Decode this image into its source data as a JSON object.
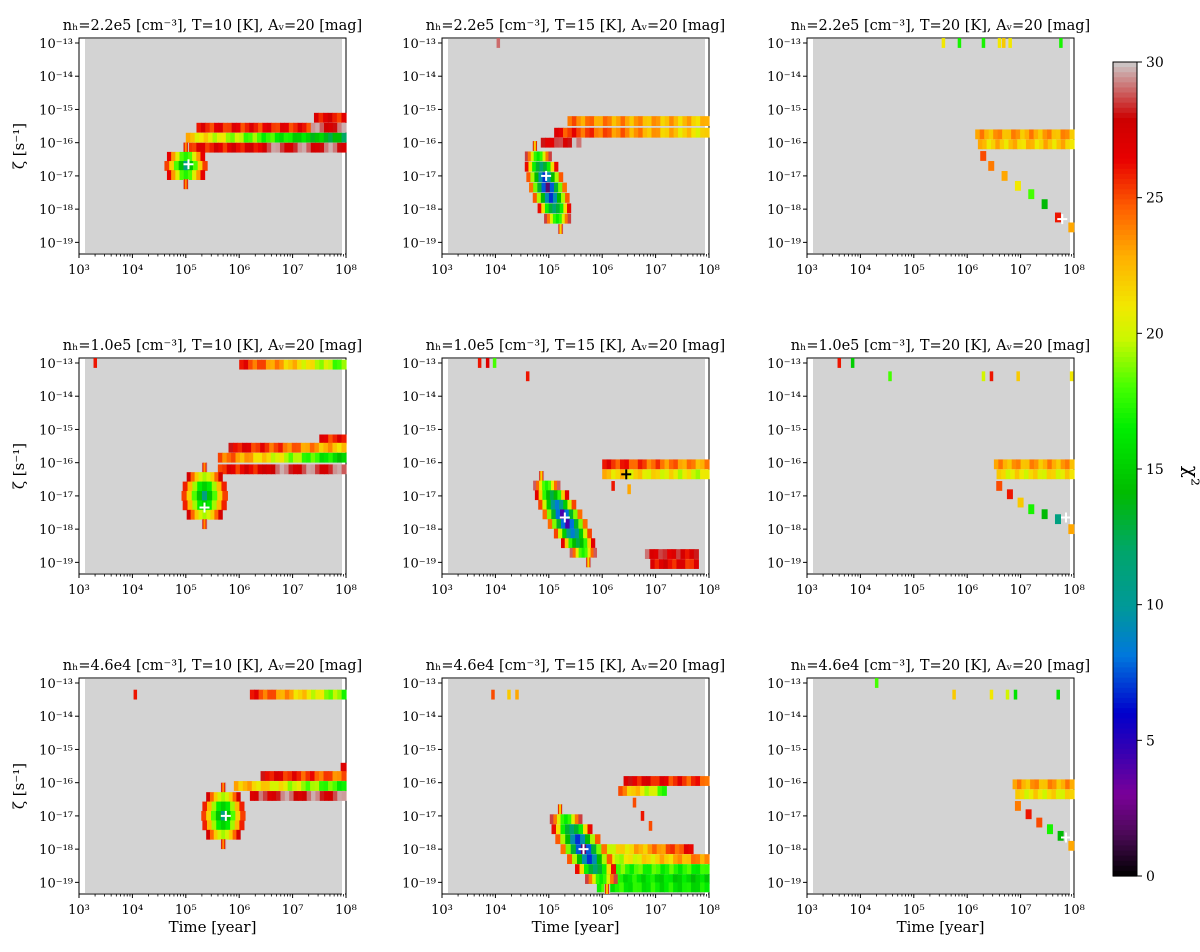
{
  "figure": {
    "x_label": "Time [year]",
    "y_label": "ζ [s⁻¹]",
    "colorbar_label": "χ²"
  },
  "colorbar": {
    "vmin": 0,
    "vmax": 30,
    "ticks": [
      0,
      5,
      10,
      15,
      20,
      25,
      30
    ],
    "colormap": "nipy_spectral-like",
    "stops": [
      [
        0,
        "#000000"
      ],
      [
        0.05,
        "#4a0a55"
      ],
      [
        0.1,
        "#7a0099"
      ],
      [
        0.15,
        "#3a00b0"
      ],
      [
        0.2,
        "#0000cc"
      ],
      [
        0.27,
        "#0077dd"
      ],
      [
        0.33,
        "#009999"
      ],
      [
        0.4,
        "#00a66a"
      ],
      [
        0.47,
        "#00bb00"
      ],
      [
        0.55,
        "#00ee00"
      ],
      [
        0.6,
        "#44ff00"
      ],
      [
        0.66,
        "#ccf700"
      ],
      [
        0.7,
        "#f2e800"
      ],
      [
        0.76,
        "#ffb000"
      ],
      [
        0.82,
        "#ff6000"
      ],
      [
        0.88,
        "#e80000"
      ],
      [
        0.93,
        "#cc0000"
      ],
      [
        1.0,
        "#cccccc"
      ]
    ],
    "background": "#d3d3d3"
  },
  "chart_data": [
    {
      "type": "heatmap",
      "title_n": "2.2e5",
      "title_T": "10",
      "xlabel": "",
      "ylabel": "ζ [s⁻¹]",
      "xlim_log10": [
        3,
        8
      ],
      "ylim_log10": [
        -19.2,
        -13
      ],
      "best_fit": {
        "log_t": 5.05,
        "log_zeta": -16.65,
        "marker_color": "#ffffff"
      },
      "bands": [
        {
          "log_zeta": -15.55,
          "t0": 5.2,
          "t1": 8.0,
          "c0": 26,
          "c1": 26,
          "fade": 7.3
        },
        {
          "log_zeta": -15.85,
          "t0": 5.0,
          "t1": 8.0,
          "c0": 22,
          "c1": 13
        },
        {
          "log_zeta": -16.15,
          "t0": 4.95,
          "t1": 8.0,
          "c0": 26,
          "c1": 28,
          "fade": 6.4
        },
        {
          "log_zeta": -15.25,
          "t0": 7.4,
          "t1": 8.0,
          "c0": 27,
          "c1": 26
        }
      ],
      "blobs": [
        {
          "log_t": 5.0,
          "log_zeta": -16.7,
          "w": 0.35,
          "h": 1.1,
          "cmin": 11,
          "tilt": 0.0
        }
      ],
      "spikes": []
    },
    {
      "type": "heatmap",
      "title_n": "2.2e5",
      "title_T": "15",
      "xlabel": "",
      "ylabel": "",
      "xlim_log10": [
        3,
        8
      ],
      "ylim_log10": [
        -19.2,
        -13
      ],
      "best_fit": {
        "log_t": 4.95,
        "log_zeta": -17.0,
        "marker_color": "#ffffff"
      },
      "bands": [
        {
          "log_zeta": -15.35,
          "t0": 5.35,
          "t1": 8.0,
          "c0": 24,
          "c1": 22
        },
        {
          "log_zeta": -15.7,
          "t0": 5.1,
          "t1": 8.0,
          "c0": 26,
          "c1": 21
        },
        {
          "log_zeta": -16.0,
          "t0": 4.85,
          "t1": 5.6,
          "c0": 27,
          "c1": 29
        }
      ],
      "blobs": [
        {
          "log_t": 4.98,
          "log_zeta": -17.35,
          "w": 0.3,
          "h": 2.5,
          "cmin": 2,
          "tilt": -0.12
        }
      ],
      "spikes": [
        {
          "log_t": 4.05,
          "log_zeta": -13.0,
          "c": 29
        }
      ]
    },
    {
      "type": "heatmap",
      "title_n": "2.2e5",
      "title_T": "20",
      "xlabel": "",
      "ylabel": "",
      "xlim_log10": [
        3,
        8
      ],
      "ylim_log10": [
        -19.2,
        -13
      ],
      "best_fit": {
        "log_t": 7.78,
        "log_zeta": -18.3,
        "marker_color": "#ffffff"
      },
      "bands": [
        {
          "log_zeta": -15.75,
          "t0": 6.15,
          "t1": 8.0,
          "c0": 23,
          "c1": 23
        },
        {
          "log_zeta": -16.05,
          "t0": 6.2,
          "t1": 8.0,
          "c0": 22,
          "c1": 22
        }
      ],
      "blobs": [],
      "steps": [
        {
          "log_t": 6.3,
          "log_zeta": -16.4,
          "c": 25
        },
        {
          "log_t": 6.45,
          "log_zeta": -16.7,
          "c": 24
        },
        {
          "log_t": 6.7,
          "log_zeta": -17.0,
          "c": 23
        },
        {
          "log_t": 6.95,
          "log_zeta": -17.3,
          "c": 21
        },
        {
          "log_t": 7.2,
          "log_zeta": -17.55,
          "c": 18
        },
        {
          "log_t": 7.45,
          "log_zeta": -17.85,
          "c": 14
        },
        {
          "log_t": 7.7,
          "log_zeta": -18.25,
          "c": 26
        },
        {
          "log_t": 7.95,
          "log_zeta": -18.55,
          "c": 23
        }
      ],
      "spikes": [
        {
          "log_t": 5.55,
          "log_zeta": -13.0,
          "c": 21
        },
        {
          "log_t": 5.85,
          "log_zeta": -13.0,
          "c": 17
        },
        {
          "log_t": 6.3,
          "log_zeta": -13.0,
          "c": 17
        },
        {
          "log_t": 6.6,
          "log_zeta": -13.0,
          "c": 21
        },
        {
          "log_t": 6.68,
          "log_zeta": -13.0,
          "c": 22
        },
        {
          "log_t": 6.8,
          "log_zeta": -13.0,
          "c": 21
        },
        {
          "log_t": 7.75,
          "log_zeta": -13.0,
          "c": 17
        }
      ]
    },
    {
      "type": "heatmap",
      "title_n": "1.0e5",
      "title_T": "10",
      "xlabel": "",
      "ylabel": "ζ [s⁻¹]",
      "xlim_log10": [
        3,
        8
      ],
      "ylim_log10": [
        -19.2,
        -13
      ],
      "best_fit": {
        "log_t": 5.35,
        "log_zeta": -17.35,
        "marker_color": "#ffffff"
      },
      "bands": [
        {
          "log_zeta": -13.05,
          "t0": 6.0,
          "t1": 8.0,
          "c0": 26,
          "c1": 18
        },
        {
          "log_zeta": -15.3,
          "t0": 7.5,
          "t1": 8.0,
          "c0": 26,
          "c1": 26
        },
        {
          "log_zeta": -15.55,
          "t0": 5.8,
          "t1": 8.0,
          "c0": 27,
          "c1": 22
        },
        {
          "log_zeta": -15.85,
          "t0": 5.6,
          "t1": 8.0,
          "c0": 25,
          "c1": 15
        },
        {
          "log_zeta": -16.2,
          "t0": 5.6,
          "t1": 8.0,
          "c0": 26,
          "c1": 28,
          "fade": 6.5
        }
      ],
      "blobs": [
        {
          "log_t": 5.35,
          "log_zeta": -17.0,
          "w": 0.38,
          "h": 1.7,
          "cmin": 11,
          "tilt": 0.0
        }
      ],
      "spikes": [
        {
          "log_t": 3.3,
          "log_zeta": -13.0,
          "c": 26
        }
      ]
    },
    {
      "type": "heatmap",
      "title_n": "1.0e5",
      "title_T": "15",
      "xlabel": "",
      "ylabel": "",
      "xlim_log10": [
        3,
        8
      ],
      "ylim_log10": [
        -19.2,
        -13
      ],
      "best_fit": {
        "log_t": 5.3,
        "log_zeta": -17.65,
        "marker_color": "#ffffff"
      },
      "best_fit2": {
        "log_t": 6.45,
        "log_zeta": -16.35,
        "marker_color": "#000000"
      },
      "bands": [
        {
          "log_zeta": -16.05,
          "t0": 6.0,
          "t1": 8.0,
          "c0": 26,
          "c1": 23
        },
        {
          "log_zeta": -16.35,
          "t0": 6.0,
          "t1": 8.0,
          "c0": 22,
          "c1": 20
        },
        {
          "log_zeta": -18.75,
          "t0": 6.8,
          "t1": 7.8,
          "c0": 28,
          "c1": 27
        },
        {
          "log_zeta": -19.05,
          "t0": 6.9,
          "t1": 7.8,
          "c0": 27,
          "c1": 26
        }
      ],
      "blobs": [
        {
          "log_t": 5.3,
          "log_zeta": -17.7,
          "w": 0.32,
          "h": 2.6,
          "cmin": 2,
          "tilt": -0.22
        }
      ],
      "spikes": [
        {
          "log_t": 3.7,
          "log_zeta": -13.0,
          "c": 26
        },
        {
          "log_t": 3.85,
          "log_zeta": -13.0,
          "c": 27
        },
        {
          "log_t": 3.98,
          "log_zeta": -13.0,
          "c": 18
        },
        {
          "log_t": 4.6,
          "log_zeta": -13.4,
          "c": 26
        },
        {
          "log_t": 6.2,
          "log_zeta": -16.7,
          "c": 26
        },
        {
          "log_t": 6.5,
          "log_zeta": -16.8,
          "c": 23
        }
      ]
    },
    {
      "type": "heatmap",
      "title_n": "1.0e5",
      "title_T": "20",
      "xlabel": "",
      "ylabel": "",
      "xlim_log10": [
        3,
        8
      ],
      "ylim_log10": [
        -19.2,
        -13
      ],
      "best_fit": {
        "log_t": 7.85,
        "log_zeta": -17.65,
        "marker_color": "#ffffff"
      },
      "bands": [
        {
          "log_zeta": -16.05,
          "t0": 6.5,
          "t1": 8.0,
          "c0": 23,
          "c1": 23
        },
        {
          "log_zeta": -16.35,
          "t0": 6.55,
          "t1": 8.0,
          "c0": 21,
          "c1": 21
        }
      ],
      "blobs": [],
      "steps": [
        {
          "log_t": 6.6,
          "log_zeta": -16.7,
          "c": 25
        },
        {
          "log_t": 6.8,
          "log_zeta": -16.95,
          "c": 26
        },
        {
          "log_t": 7.0,
          "log_zeta": -17.2,
          "c": 22
        },
        {
          "log_t": 7.2,
          "log_zeta": -17.4,
          "c": 17
        },
        {
          "log_t": 7.45,
          "log_zeta": -17.55,
          "c": 14
        },
        {
          "log_t": 7.7,
          "log_zeta": -17.7,
          "c": 11
        },
        {
          "log_t": 7.95,
          "log_zeta": -18.0,
          "c": 23
        }
      ],
      "spikes": [
        {
          "log_t": 3.6,
          "log_zeta": -13.0,
          "c": 26
        },
        {
          "log_t": 3.85,
          "log_zeta": -13.0,
          "c": 15
        },
        {
          "log_t": 4.55,
          "log_zeta": -13.4,
          "c": 18
        },
        {
          "log_t": 6.3,
          "log_zeta": -13.4,
          "c": 20
        },
        {
          "log_t": 6.45,
          "log_zeta": -13.4,
          "c": 26
        },
        {
          "log_t": 6.95,
          "log_zeta": -13.4,
          "c": 22
        },
        {
          "log_t": 7.95,
          "log_zeta": -13.4,
          "c": 21
        }
      ]
    },
    {
      "type": "heatmap",
      "title_n": "4.6e4",
      "title_T": "10",
      "xlabel": "Time [year]",
      "ylabel": "ζ [s⁻¹]",
      "xlim_log10": [
        3,
        8
      ],
      "ylim_log10": [
        -19.2,
        -13
      ],
      "best_fit": {
        "log_t": 5.75,
        "log_zeta": -17.0,
        "marker_color": "#ffffff"
      },
      "bands": [
        {
          "log_zeta": -13.35,
          "t0": 6.2,
          "t1": 8.0,
          "c0": 26,
          "c1": 18
        },
        {
          "log_zeta": -15.55,
          "t0": 7.9,
          "t1": 8.0,
          "c0": 26,
          "c1": 26
        },
        {
          "log_zeta": -15.8,
          "t0": 6.4,
          "t1": 8.0,
          "c0": 27,
          "c1": 24
        },
        {
          "log_zeta": -16.1,
          "t0": 5.9,
          "t1": 8.0,
          "c0": 23,
          "c1": 17
        },
        {
          "log_zeta": -16.4,
          "t0": 6.2,
          "t1": 8.0,
          "c0": 28,
          "c1": 29,
          "fade": 6.6
        }
      ],
      "blobs": [
        {
          "log_t": 5.7,
          "log_zeta": -17.0,
          "w": 0.36,
          "h": 1.7,
          "cmin": 11,
          "tilt": 0.0
        }
      ],
      "spikes": [
        {
          "log_t": 4.05,
          "log_zeta": -13.35,
          "c": 26
        }
      ]
    },
    {
      "type": "heatmap",
      "title_n": "4.6e4",
      "title_T": "15",
      "xlabel": "Time [year]",
      "ylabel": "",
      "xlim_log10": [
        3,
        8
      ],
      "ylim_log10": [
        -19.2,
        -13
      ],
      "best_fit": {
        "log_t": 5.65,
        "log_zeta": -18.0,
        "marker_color": "#ffffff"
      },
      "bands": [
        {
          "log_zeta": -15.95,
          "t0": 6.4,
          "t1": 8.0,
          "c0": 27,
          "c1": 25
        },
        {
          "log_zeta": -16.25,
          "t0": 6.3,
          "t1": 7.2,
          "c0": 24,
          "c1": 18
        },
        {
          "log_zeta": -18.0,
          "t0": 6.0,
          "t1": 7.7,
          "c0": 20,
          "c1": 26
        },
        {
          "log_zeta": -18.3,
          "t0": 5.9,
          "t1": 8.0,
          "c0": 19,
          "c1": 24
        },
        {
          "log_zeta": -18.6,
          "t0": 5.85,
          "t1": 8.0,
          "c0": 18,
          "c1": 17
        },
        {
          "log_zeta": -18.9,
          "t0": 5.8,
          "t1": 8.0,
          "c0": 17,
          "c1": 15
        },
        {
          "log_zeta": -19.15,
          "t0": 5.9,
          "t1": 8.0,
          "c0": 17,
          "c1": 16
        }
      ],
      "blobs": [
        {
          "log_t": 5.65,
          "log_zeta": -18.0,
          "w": 0.38,
          "h": 2.4,
          "cmin": 2,
          "tilt": -0.22
        }
      ],
      "spikes": [
        {
          "log_t": 3.95,
          "log_zeta": -13.35,
          "c": 25
        },
        {
          "log_t": 4.25,
          "log_zeta": -13.35,
          "c": 22
        },
        {
          "log_t": 4.4,
          "log_zeta": -13.35,
          "c": 23
        },
        {
          "log_t": 6.6,
          "log_zeta": -16.6,
          "c": 25
        },
        {
          "log_t": 6.75,
          "log_zeta": -17.0,
          "c": 26
        },
        {
          "log_t": 6.9,
          "log_zeta": -17.3,
          "c": 25
        }
      ]
    },
    {
      "type": "heatmap",
      "title_n": "4.6e4",
      "title_T": "20",
      "xlabel": "Time [year]",
      "ylabel": "",
      "xlim_log10": [
        3,
        8
      ],
      "ylim_log10": [
        -19.2,
        -13
      ],
      "best_fit": {
        "log_t": 7.85,
        "log_zeta": -17.65,
        "marker_color": "#ffffff"
      },
      "bands": [
        {
          "log_zeta": -16.05,
          "t0": 6.85,
          "t1": 8.0,
          "c0": 23,
          "c1": 23
        },
        {
          "log_zeta": -16.35,
          "t0": 6.9,
          "t1": 8.0,
          "c0": 21,
          "c1": 21
        }
      ],
      "blobs": [],
      "steps": [
        {
          "log_t": 6.95,
          "log_zeta": -16.7,
          "c": 24
        },
        {
          "log_t": 7.15,
          "log_zeta": -16.95,
          "c": 26
        },
        {
          "log_t": 7.35,
          "log_zeta": -17.2,
          "c": 25
        },
        {
          "log_t": 7.55,
          "log_zeta": -17.4,
          "c": 17
        },
        {
          "log_t": 7.75,
          "log_zeta": -17.6,
          "c": 14
        },
        {
          "log_t": 7.95,
          "log_zeta": -17.9,
          "c": 23
        }
      ],
      "spikes": [
        {
          "log_t": 4.3,
          "log_zeta": -13.0,
          "c": 18
        },
        {
          "log_t": 5.75,
          "log_zeta": -13.35,
          "c": 22
        },
        {
          "log_t": 6.45,
          "log_zeta": -13.35,
          "c": 21
        },
        {
          "log_t": 6.75,
          "log_zeta": -13.35,
          "c": 20
        },
        {
          "log_t": 6.9,
          "log_zeta": -13.35,
          "c": 16
        },
        {
          "log_t": 7.7,
          "log_zeta": -13.35,
          "c": 16
        }
      ]
    }
  ]
}
